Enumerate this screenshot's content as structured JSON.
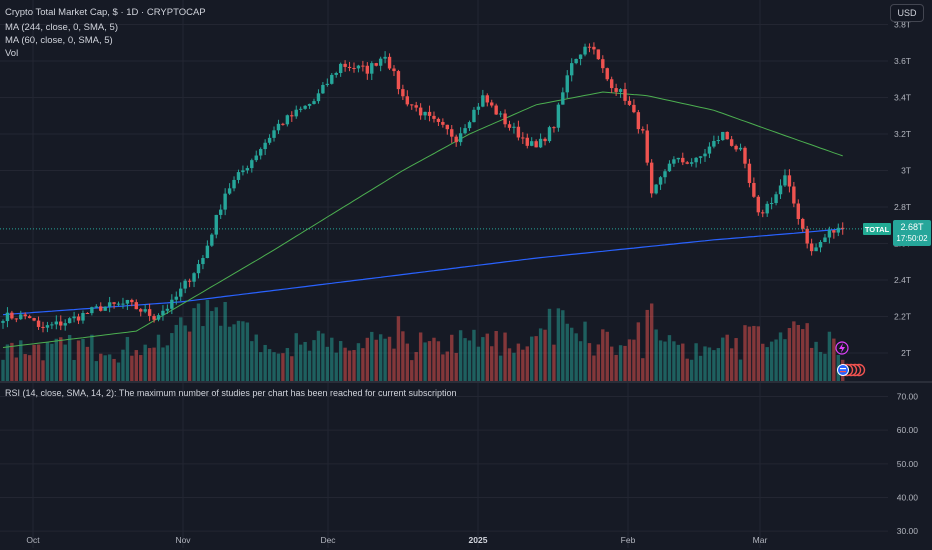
{
  "legend": {
    "title": "Crypto Total Market Cap, $ · 1D · CRYPTOCAP",
    "ma1": "MA (244, close, 0, SMA, 5)",
    "ma2": "MA (60, close, 0, SMA, 5)",
    "vol": "Vol"
  },
  "rsi_note": "RSI (14, close, SMA, 14, 2): The maximum number of studies per chart has been reached for current subscription",
  "currency_button": "USD",
  "last_price": {
    "symbol": "TOTAL",
    "value": "2.68T",
    "countdown": "17:50:02"
  },
  "colors": {
    "background": "#161a25",
    "up": "#26a69a",
    "down": "#ef5350",
    "ma244": "#2962ff",
    "ma60": "#4caf50",
    "grid": "#232632",
    "axis_text": "#b2b5be"
  },
  "chart_data": {
    "type": "candlestick",
    "x_range": [
      "2024-09-24",
      "2025-03-14"
    ],
    "y_ticks": [
      "2T",
      "2.2T",
      "2.4T",
      "2.6T",
      "2.8T",
      "3T",
      "3.2T",
      "3.4T",
      "3.6T",
      "3.8T"
    ],
    "y_range": [
      1.92,
      3.82
    ],
    "x_ticks": [
      "Oct",
      "Nov",
      "Dec",
      "2025",
      "Feb",
      "Mar"
    ],
    "close_anchors": [
      [
        0,
        2.2
      ],
      [
        6,
        2.2
      ],
      [
        8,
        2.13
      ],
      [
        14,
        2.17
      ],
      [
        22,
        2.25
      ],
      [
        28,
        2.27
      ],
      [
        34,
        2.2
      ],
      [
        38,
        2.27
      ],
      [
        45,
        2.52
      ],
      [
        50,
        2.88
      ],
      [
        55,
        3.03
      ],
      [
        62,
        3.25
      ],
      [
        70,
        3.38
      ],
      [
        76,
        3.58
      ],
      [
        82,
        3.55
      ],
      [
        86,
        3.64
      ],
      [
        90,
        3.4
      ],
      [
        96,
        3.28
      ],
      [
        102,
        3.18
      ],
      [
        108,
        3.4
      ],
      [
        114,
        3.24
      ],
      [
        120,
        3.12
      ],
      [
        124,
        3.25
      ],
      [
        128,
        3.6
      ],
      [
        132,
        3.7
      ],
      [
        136,
        3.5
      ],
      [
        140,
        3.4
      ],
      [
        144,
        3.2
      ],
      [
        146,
        2.85
      ],
      [
        150,
        3.05
      ],
      [
        156,
        3.05
      ],
      [
        162,
        3.2
      ],
      [
        166,
        3.1
      ],
      [
        170,
        2.75
      ],
      [
        174,
        2.87
      ],
      [
        176,
        2.96
      ],
      [
        179,
        2.75
      ],
      [
        182,
        2.55
      ],
      [
        186,
        2.66
      ],
      [
        189,
        2.68
      ]
    ],
    "ma244_anchors": [
      [
        0,
        2.21
      ],
      [
        40,
        2.28
      ],
      [
        80,
        2.4
      ],
      [
        120,
        2.52
      ],
      [
        160,
        2.62
      ],
      [
        180,
        2.66
      ],
      [
        189,
        2.68
      ]
    ],
    "ma60_anchors": [
      [
        0,
        2.03
      ],
      [
        30,
        2.12
      ],
      [
        60,
        2.55
      ],
      [
        90,
        3.0
      ],
      [
        105,
        3.2
      ],
      [
        120,
        3.36
      ],
      [
        135,
        3.43
      ],
      [
        145,
        3.41
      ],
      [
        160,
        3.33
      ],
      [
        175,
        3.2
      ],
      [
        189,
        3.08
      ]
    ],
    "rsi_ticks": [
      "70.00",
      "60.00",
      "50.00",
      "40.00",
      "30.00"
    ],
    "rsi_range": [
      25,
      74
    ]
  }
}
